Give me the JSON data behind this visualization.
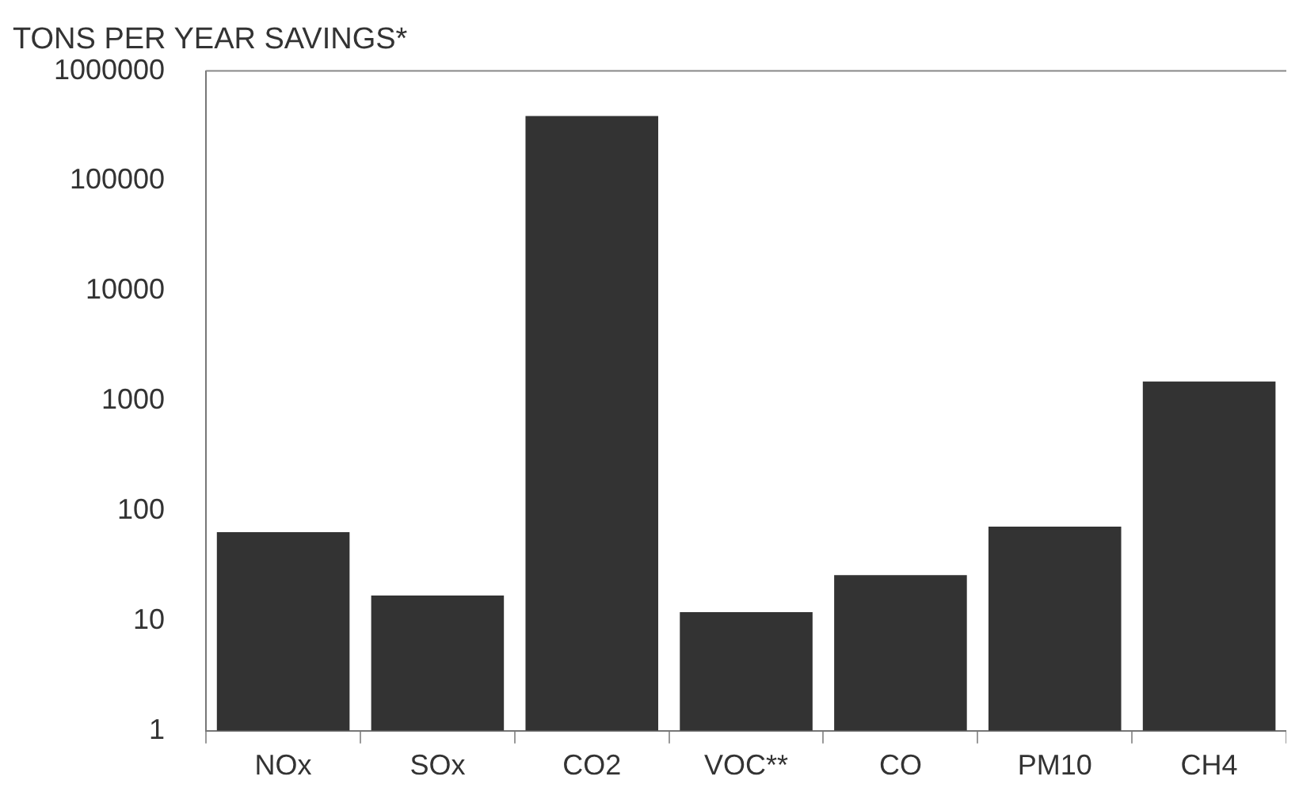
{
  "chart_data": {
    "type": "bar",
    "title": "TONS PER YEAR SAVINGS*",
    "categories": [
      "NOx",
      "SOx",
      "CO2",
      "VOC**",
      "CO",
      "PM10",
      "CH4"
    ],
    "values": [
      64,
      17,
      390000,
      12,
      26,
      72,
      1500
    ],
    "color": "#333333",
    "log": true,
    "ylim": [
      1,
      1000000
    ],
    "yticks": [
      1,
      10,
      100,
      1000,
      10000,
      100000,
      1000000
    ],
    "grid": false,
    "legend": false
  }
}
